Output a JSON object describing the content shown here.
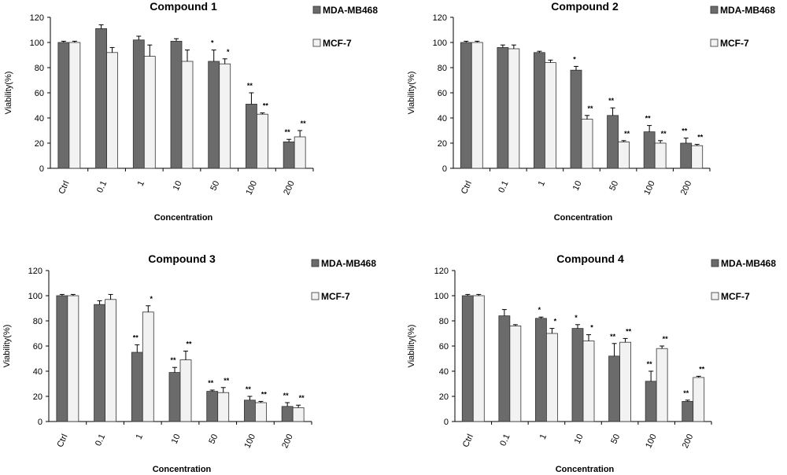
{
  "chart_data": [
    {
      "type": "bar",
      "title": "Compound 1",
      "xlabel": "Concentration",
      "ylabel": "Viability(%)",
      "ylim": [
        0,
        120
      ],
      "yticks": [
        0,
        20,
        40,
        60,
        80,
        100,
        120
      ],
      "categories": [
        "Ctrl",
        "0.1",
        "1",
        "10",
        "50",
        "100",
        "200"
      ],
      "legend_position": "right",
      "series": [
        {
          "name": "MDA-MB468",
          "color": "#6b6b6b",
          "values": [
            100,
            111,
            102,
            101,
            85,
            51,
            21
          ],
          "errors": [
            1,
            3,
            3,
            2,
            9,
            9,
            2
          ],
          "sig": [
            "",
            "",
            "",
            "",
            "*",
            "**",
            "**"
          ]
        },
        {
          "name": "MCF-7",
          "color": "#f2f2f2",
          "values": [
            100,
            92,
            89,
            85,
            83,
            43,
            25
          ],
          "errors": [
            1,
            4,
            9,
            9,
            4,
            1,
            5
          ],
          "sig": [
            "",
            "",
            "",
            "",
            "*",
            "**",
            "**"
          ]
        }
      ]
    },
    {
      "type": "bar",
      "title": "Compound 2",
      "xlabel": "Concentration",
      "ylabel": "Viability(%)",
      "ylim": [
        0,
        120
      ],
      "yticks": [
        0,
        20,
        40,
        60,
        80,
        100,
        120
      ],
      "categories": [
        "Ctrl",
        "0.1",
        "1",
        "10",
        "50",
        "100",
        "200"
      ],
      "legend_position": "right",
      "series": [
        {
          "name": "MDA-MB468",
          "color": "#6b6b6b",
          "values": [
            100,
            96,
            92,
            78,
            42,
            29,
            20
          ],
          "errors": [
            1,
            2,
            1,
            3,
            6,
            5,
            4
          ],
          "sig": [
            "",
            "",
            "",
            "*",
            "**",
            "**",
            "**"
          ]
        },
        {
          "name": "MCF-7",
          "color": "#f2f2f2",
          "values": [
            100,
            95,
            84,
            39,
            21,
            20,
            18
          ],
          "errors": [
            1,
            3,
            2,
            3,
            1,
            2,
            1
          ],
          "sig": [
            "",
            "",
            "",
            "**",
            "**",
            "**",
            "**"
          ]
        }
      ]
    },
    {
      "type": "bar",
      "title": "Compound 3",
      "xlabel": "Concentration",
      "ylabel": "Viability(%)",
      "ylim": [
        0,
        120
      ],
      "yticks": [
        0,
        20,
        40,
        60,
        80,
        100,
        120
      ],
      "categories": [
        "Ctrl",
        "0.1",
        "1",
        "10",
        "50",
        "100",
        "200"
      ],
      "legend_position": "right",
      "series": [
        {
          "name": "MDA-MB468",
          "color": "#6b6b6b",
          "values": [
            100,
            93,
            55,
            39,
            24,
            17,
            12
          ],
          "errors": [
            1,
            3,
            6,
            4,
            1,
            3,
            3
          ],
          "sig": [
            "",
            "",
            "**",
            "**",
            "**",
            "**",
            "**"
          ]
        },
        {
          "name": "MCF-7",
          "color": "#f2f2f2",
          "values": [
            100,
            97,
            87,
            49,
            23,
            15,
            11
          ],
          "errors": [
            1,
            4,
            5,
            7,
            4,
            1,
            2
          ],
          "sig": [
            "",
            "",
            "*",
            "**",
            "**",
            "**",
            "**"
          ]
        }
      ]
    },
    {
      "type": "bar",
      "title": "Compound 4",
      "xlabel": "Concentration",
      "ylabel": "Viability(%)",
      "ylim": [
        0,
        120
      ],
      "yticks": [
        0,
        20,
        40,
        60,
        80,
        100,
        120
      ],
      "categories": [
        "Ctrl",
        "0.1",
        "1",
        "10",
        "50",
        "100",
        "200"
      ],
      "legend_position": "right",
      "series": [
        {
          "name": "MDA-MB468",
          "color": "#6b6b6b",
          "values": [
            100,
            84,
            82,
            74,
            52,
            32,
            16
          ],
          "errors": [
            1,
            5,
            1,
            3,
            10,
            8,
            1
          ],
          "sig": [
            "",
            "",
            "*",
            "*",
            "**",
            "**",
            "**"
          ]
        },
        {
          "name": "MCF-7",
          "color": "#f2f2f2",
          "values": [
            100,
            76,
            70,
            64,
            63,
            58,
            35
          ],
          "errors": [
            1,
            1,
            4,
            5,
            3,
            2,
            1
          ],
          "sig": [
            "",
            "",
            "*",
            "*",
            "**",
            "**",
            "**"
          ]
        }
      ]
    }
  ]
}
